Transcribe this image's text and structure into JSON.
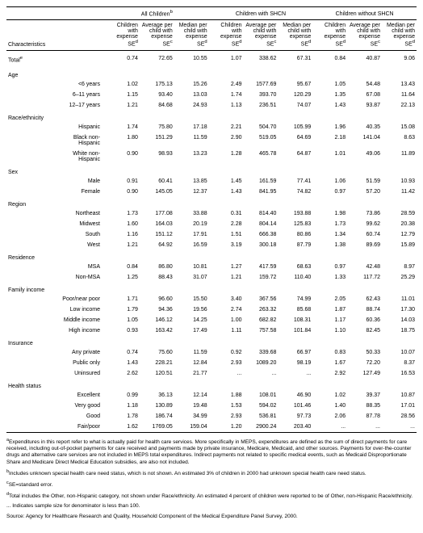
{
  "col_headers": {
    "characteristics": "Characteristics",
    "g1": "All Children",
    "g2": "Children with SHCN",
    "g3": "Children without SHCN",
    "c1": "Children with expense SE",
    "c2": "Average per child with expense SE",
    "c3": "Median per child with expense SE",
    "sup_b": "b",
    "sup_c": "c",
    "sup_d": "d",
    "sup_e": "e"
  },
  "groups": [
    {
      "label": "Total",
      "sup": "e",
      "rows": [
        {
          "label": "",
          "v": [
            "0.74",
            "72.65",
            "10.55",
            "1.07",
            "338.62",
            "67.31",
            "0.84",
            "40.87",
            "9.06"
          ]
        }
      ]
    },
    {
      "label": "Age",
      "rows": [
        {
          "label": "<6 years",
          "v": [
            "1.02",
            "175.13",
            "15.26",
            "2.49",
            "1577.69",
            "95.67",
            "1.05",
            "54.48",
            "13.43"
          ]
        },
        {
          "label": "6–11 years",
          "v": [
            "1.15",
            "93.40",
            "13.03",
            "1.74",
            "393.70",
            "120.29",
            "1.35",
            "67.08",
            "11.64"
          ]
        },
        {
          "label": "12–17 years",
          "v": [
            "1.21",
            "84.68",
            "24.93",
            "1.13",
            "236.51",
            "74.07",
            "1.43",
            "93.87",
            "22.13"
          ]
        }
      ]
    },
    {
      "label": "Race/ethnicity",
      "rows": [
        {
          "label": "Hispanic",
          "v": [
            "1.74",
            "75.80",
            "17.18",
            "2.21",
            "504.70",
            "105.99",
            "1.96",
            "40.35",
            "15.08"
          ]
        },
        {
          "label": "Black non-Hispanic",
          "v": [
            "1.80",
            "151.29",
            "11.59",
            "2.90",
            "519.05",
            "64.69",
            "2.18",
            "141.04",
            "8.63"
          ]
        },
        {
          "label": "White non-Hispanic",
          "v": [
            "0.90",
            "98.93",
            "13.23",
            "1.28",
            "465.78",
            "64.87",
            "1.01",
            "49.06",
            "11.89"
          ]
        }
      ]
    },
    {
      "label": "Sex",
      "rows": [
        {
          "label": "Male",
          "v": [
            "0.91",
            "60.41",
            "13.85",
            "1.45",
            "161.59",
            "77.41",
            "1.06",
            "51.59",
            "10.93"
          ]
        },
        {
          "label": "Female",
          "v": [
            "0.90",
            "145.05",
            "12.37",
            "1.43",
            "841.95",
            "74.82",
            "0.97",
            "57.20",
            "11.42"
          ]
        }
      ]
    },
    {
      "label": "Region",
      "rows": [
        {
          "label": "Northeast",
          "v": [
            "1.73",
            "177.08",
            "33.88",
            "0.31",
            "814.40",
            "193.88",
            "1.98",
            "73.86",
            "28.59"
          ]
        },
        {
          "label": "Midwest",
          "v": [
            "1.60",
            "164.03",
            "20.19",
            "2.28",
            "804.14",
            "125.83",
            "1.73",
            "99.62",
            "20.38"
          ]
        },
        {
          "label": "South",
          "v": [
            "1.16",
            "151.12",
            "17.91",
            "1.51",
            "666.38",
            "80.86",
            "1.34",
            "60.74",
            "12.79"
          ]
        },
        {
          "label": "West",
          "v": [
            "1.21",
            "64.92",
            "16.59",
            "3.19",
            "300.18",
            "87.79",
            "1.38",
            "89.69",
            "15.89"
          ]
        }
      ]
    },
    {
      "label": "Residence",
      "rows": [
        {
          "label": "MSA",
          "v": [
            "0.84",
            "86.80",
            "10.81",
            "1.27",
            "417.59",
            "68.63",
            "0.97",
            "42.48",
            "8.97"
          ]
        },
        {
          "label": "Non-MSA",
          "v": [
            "1.25",
            "88.43",
            "31.07",
            "1.21",
            "159.72",
            "110.40",
            "1.33",
            "117.72",
            "25.29"
          ]
        }
      ]
    },
    {
      "label": "Family income",
      "rows": [
        {
          "label": "Poor/near poor",
          "v": [
            "1.71",
            "96.60",
            "15.50",
            "3.40",
            "367.56",
            "74.99",
            "2.05",
            "62.43",
            "11.01"
          ]
        },
        {
          "label": "Low income",
          "v": [
            "1.79",
            "94.36",
            "19.56",
            "2.74",
            "263.32",
            "85.68",
            "1.87",
            "88.74",
            "17.30"
          ]
        },
        {
          "label": "Middle income",
          "v": [
            "1.05",
            "146.12",
            "14.25",
            "1.00",
            "682.82",
            "108.31",
            "1.17",
            "60.36",
            "14.03"
          ]
        },
        {
          "label": "High income",
          "v": [
            "0.93",
            "163.42",
            "17.49",
            "1.11",
            "757.58",
            "101.84",
            "1.10",
            "82.45",
            "18.75"
          ]
        }
      ]
    },
    {
      "label": "Insurance",
      "rows": [
        {
          "label": "Any private",
          "v": [
            "0.74",
            "75.60",
            "11.59",
            "0.92",
            "339.68",
            "66.97",
            "0.83",
            "50.33",
            "10.07"
          ]
        },
        {
          "label": "Public only",
          "v": [
            "1.43",
            "228.21",
            "12.84",
            "2.93",
            "1089.20",
            "98.19",
            "1.67",
            "72.20",
            "8.37"
          ]
        },
        {
          "label": "Uninsured",
          "v": [
            "2.62",
            "120.51",
            "21.77",
            "...",
            "...",
            "...",
            "2.92",
            "127.49",
            "16.53"
          ]
        }
      ]
    },
    {
      "label": "Health status",
      "rows": [
        {
          "label": "Excellent",
          "v": [
            "0.99",
            "36.13",
            "12.14",
            "1.88",
            "108.01",
            "46.90",
            "1.02",
            "39.37",
            "10.87"
          ]
        },
        {
          "label": "Very good",
          "v": [
            "1.18",
            "130.89",
            "19.48",
            "1.53",
            "594.02",
            "101.46",
            "1.40",
            "88.35",
            "17.01"
          ]
        },
        {
          "label": "Good",
          "v": [
            "1.78",
            "186.74",
            "34.99",
            "2.93",
            "536.81",
            "97.73",
            "2.06",
            "87.78",
            "28.56"
          ]
        },
        {
          "label": "Fair/poor",
          "v": [
            "1.62",
            "1769.05",
            "159.04",
            "1.20",
            "2900.24",
            "203.40",
            "...",
            "...",
            "..."
          ]
        }
      ]
    }
  ],
  "footnotes": {
    "a": "Expenditures in this report refer to what is actually paid for health care services. More specifically in MEPS, expenditures are defined as the sum of direct payments for care received, including out-of-pocket payments for care received and payments made by private insurance, Medicare, Medicaid, and other sources. Payments for over-the-counter drugs and alternative care services are not included in MEPS total expenditures. Indirect payments not related to specific medical events, such as Medicaid Disproportionate Share and Medicare Direct Medical Education subsidies, are also not included.",
    "b": "Includes unknown special health care need status, which is not shown.  An estimated 3% of children in 2000 had unknown special health care need status.",
    "c": "SE=standard error.",
    "d": "Total includes the Other, non-Hispanic category, not shown under Race/ethnicity.  An estimated 4 percent of children were reported to be of Other, non-Hispanic Race/ethnicity.",
    "dots": "... Indicates sample size for denominator is less than 100.",
    "source": "Source: Agency for Healthcare Research and Quality, Household Component of the Medical Expenditure Panel Survey, 2000."
  }
}
